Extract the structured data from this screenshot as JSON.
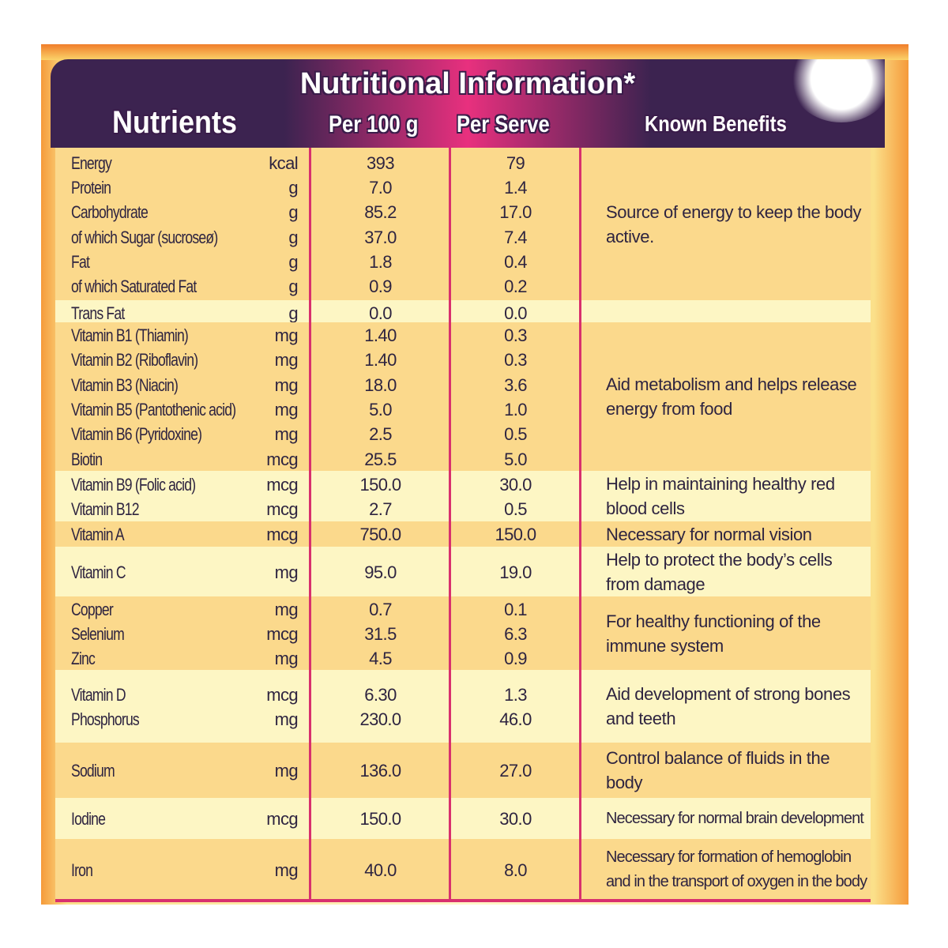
{
  "title": "Nutritional Information*",
  "headers": {
    "nutrients": "Nutrients",
    "per_100g": "Per 100 g",
    "per_serve": "Per Serve",
    "benefits": "Known Benefits"
  },
  "colors": {
    "header_dark": "#3c2350",
    "header_accent": "#e8307e",
    "divider": "#d8306e",
    "band_dark": "#fbd98c",
    "band_light": "#fdf6c4"
  },
  "groups": [
    {
      "benefit": "Source of energy to keep the body active.",
      "rows": [
        {
          "name": "Energy",
          "unit": "kcal",
          "per_100g": "393",
          "per_serve": "79"
        },
        {
          "name": "Protein",
          "unit": "g",
          "per_100g": "7.0",
          "per_serve": "1.4"
        },
        {
          "name": "Carbohydrate",
          "unit": "g",
          "per_100g": "85.2",
          "per_serve": "17.0"
        },
        {
          "name": "of which Sugar (sucroseø)",
          "unit": "g",
          "per_100g": "37.0",
          "per_serve": "7.4"
        },
        {
          "name": "Fat",
          "unit": "g",
          "per_100g": "1.8",
          "per_serve": "0.4"
        },
        {
          "name": "of which Saturated Fat",
          "unit": "g",
          "per_100g": "0.9",
          "per_serve": "0.2"
        }
      ]
    },
    {
      "benefit": "",
      "rows": [
        {
          "name": "Trans Fat",
          "unit": "g",
          "per_100g": "0.0",
          "per_serve": "0.0"
        }
      ]
    },
    {
      "benefit": "Aid metabolism and helps release energy from food",
      "rows": [
        {
          "name": "Vitamin B1 (Thiamin)",
          "unit": "mg",
          "per_100g": "1.40",
          "per_serve": "0.3"
        },
        {
          "name": "Vitamin B2 (Riboflavin)",
          "unit": "mg",
          "per_100g": "1.40",
          "per_serve": "0.3"
        },
        {
          "name": "Vitamin B3 (Niacin)",
          "unit": "mg",
          "per_100g": "18.0",
          "per_serve": "3.6"
        },
        {
          "name": "Vitamin B5 (Pantothenic acid)",
          "unit": "mg",
          "per_100g": "5.0",
          "per_serve": "1.0"
        },
        {
          "name": "Vitamin B6 (Pyridoxine)",
          "unit": "mg",
          "per_100g": "2.5",
          "per_serve": "0.5"
        },
        {
          "name": "Biotin",
          "unit": "mcg",
          "per_100g": "25.5",
          "per_serve": "5.0"
        }
      ]
    },
    {
      "benefit": "Help in maintaining healthy red blood cells",
      "rows": [
        {
          "name": "Vitamin B9 (Folic acid)",
          "unit": "mcg",
          "per_100g": "150.0",
          "per_serve": "30.0"
        },
        {
          "name": "Vitamin B12",
          "unit": "mcg",
          "per_100g": "2.7",
          "per_serve": "0.5"
        }
      ]
    },
    {
      "benefit": "Necessary for normal vision",
      "rows": [
        {
          "name": "Vitamin A",
          "unit": "mcg",
          "per_100g": "750.0",
          "per_serve": "150.0"
        }
      ]
    },
    {
      "benefit": "Help to protect the body’s cells from damage",
      "rows": [
        {
          "name": "Vitamin C",
          "unit": "mg",
          "per_100g": "95.0",
          "per_serve": "19.0"
        }
      ]
    },
    {
      "benefit": "For healthy functioning of the immune system",
      "rows": [
        {
          "name": "Copper",
          "unit": "mg",
          "per_100g": "0.7",
          "per_serve": "0.1"
        },
        {
          "name": "Selenium",
          "unit": "mcg",
          "per_100g": "31.5",
          "per_serve": "6.3"
        },
        {
          "name": "Zinc",
          "unit": "mg",
          "per_100g": "4.5",
          "per_serve": "0.9"
        }
      ]
    },
    {
      "benefit": "Aid development of strong bones and teeth",
      "rows": [
        {
          "name": "Vitamin D",
          "unit": "mcg",
          "per_100g": "6.30",
          "per_serve": "1.3"
        },
        {
          "name": "Phosphorus",
          "unit": "mg",
          "per_100g": "230.0",
          "per_serve": "46.0"
        }
      ]
    },
    {
      "benefit": "Control balance of fluids in the body",
      "rows": [
        {
          "name": "Sodium",
          "unit": "mg",
          "per_100g": "136.0",
          "per_serve": "27.0"
        }
      ]
    },
    {
      "benefit": "Necessary for normal brain development",
      "rows": [
        {
          "name": "Iodine",
          "unit": "mcg",
          "per_100g": "150.0",
          "per_serve": "30.0"
        }
      ]
    },
    {
      "benefit": "Necessary for formation of hemoglobin and in the transport of oxygen in the body",
      "rows": [
        {
          "name": "Iron",
          "unit": "mg",
          "per_100g": "40.0",
          "per_serve": "8.0"
        }
      ]
    }
  ]
}
